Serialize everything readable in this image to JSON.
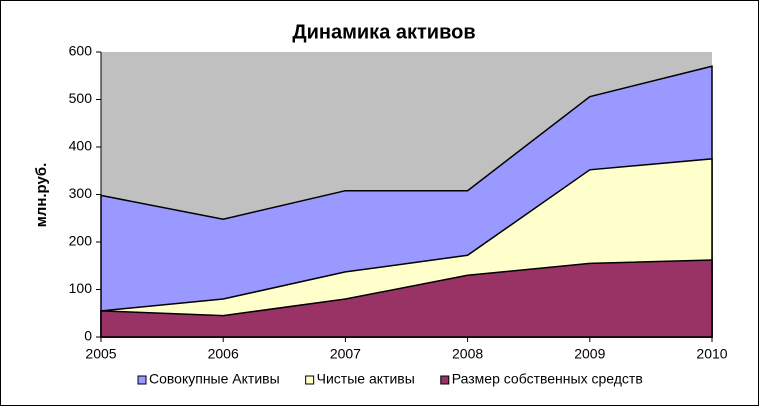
{
  "chart_data": {
    "type": "area",
    "title": "Динамика активов",
    "y_label": "млн.руб.",
    "categories": [
      "2005",
      "2006",
      "2007",
      "2008",
      "2009",
      "2010"
    ],
    "series": [
      {
        "name": "Совокупные Активы",
        "color": "#9999ff",
        "values": [
          298,
          248,
          308,
          308,
          506,
          570
        ]
      },
      {
        "name": "Чистые активы",
        "color": "#ffffcc",
        "values": [
          55,
          80,
          137,
          172,
          352,
          375
        ]
      },
      {
        "name": "Размер собственных средств",
        "color": "#993366",
        "values": [
          55,
          45,
          80,
          130,
          155,
          162
        ]
      }
    ],
    "ylim": [
      0,
      600
    ],
    "yticks": [
      0,
      100,
      200,
      300,
      400,
      500,
      600
    ],
    "plot_background": "#c0c0c0",
    "legend": "bottom"
  }
}
